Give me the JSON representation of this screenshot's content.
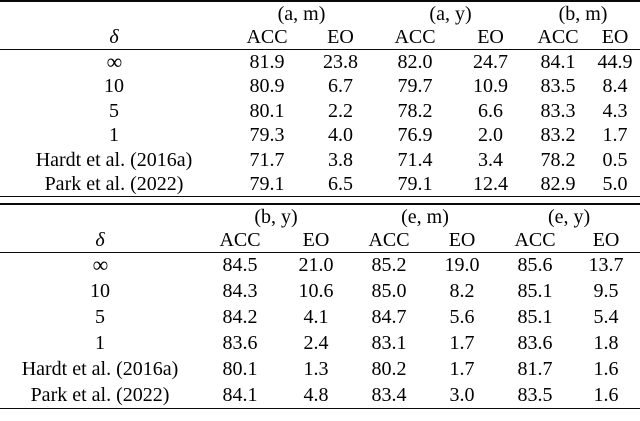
{
  "figure": {
    "kind": "paper-results-table",
    "background_color": "#ffffff",
    "text_color": "#000000"
  },
  "tables": [
    {
      "id": "top",
      "group_headers": [
        "(a, m)",
        "(a, y)",
        "(b, m)"
      ],
      "delta_header": "δ",
      "sub_headers": [
        "ACC",
        "EO",
        "ACC",
        "EO",
        "ACC",
        "EO"
      ],
      "rows": [
        {
          "label": "∞",
          "is_infinity": true,
          "values": [
            "81.9",
            "23.8",
            "82.0",
            "24.7",
            "84.1",
            "44.9"
          ],
          "bold": []
        },
        {
          "label": "10",
          "is_infinity": false,
          "values": [
            "80.9",
            "6.7",
            "79.7",
            "10.9",
            "83.5",
            "8.4"
          ],
          "bold": [
            2,
            3
          ]
        },
        {
          "label": "5",
          "is_infinity": false,
          "values": [
            "80.1",
            "2.2",
            "78.2",
            "6.6",
            "83.3",
            "4.3"
          ],
          "bold": [
            0,
            1,
            4,
            5
          ]
        },
        {
          "label": "1",
          "is_infinity": false,
          "values": [
            "79.3",
            "4.0",
            "76.9",
            "2.0",
            "83.2",
            "1.7"
          ],
          "bold": []
        },
        {
          "label": "Hardt et al. (2016a)",
          "is_infinity": false,
          "values": [
            "71.7",
            "3.8",
            "71.4",
            "3.4",
            "78.2",
            "0.5"
          ],
          "bold": []
        },
        {
          "label": "Park et al. (2022)",
          "is_infinity": false,
          "values": [
            "79.1",
            "6.5",
            "79.1",
            "12.4",
            "82.9",
            "5.0"
          ],
          "bold": []
        }
      ]
    },
    {
      "id": "bottom",
      "group_headers": [
        "(b, y)",
        "(e, m)",
        "(e, y)"
      ],
      "delta_header": "δ",
      "sub_headers": [
        "ACC",
        "EO",
        "ACC",
        "EO",
        "ACC",
        "EO"
      ],
      "rows": [
        {
          "label": "∞",
          "is_infinity": true,
          "values": [
            "84.5",
            "21.0",
            "85.2",
            "19.0",
            "85.6",
            "13.7"
          ],
          "bold": []
        },
        {
          "label": "10",
          "is_infinity": false,
          "values": [
            "84.3",
            "10.6",
            "85.0",
            "8.2",
            "85.1",
            "9.5"
          ],
          "bold": []
        },
        {
          "label": "5",
          "is_infinity": false,
          "values": [
            "84.2",
            "4.1",
            "84.7",
            "5.6",
            "85.1",
            "5.4"
          ],
          "bold": [
            0,
            1
          ]
        },
        {
          "label": "1",
          "is_infinity": false,
          "values": [
            "83.6",
            "2.4",
            "83.1",
            "1.7",
            "83.6",
            "1.8"
          ],
          "bold": []
        },
        {
          "label": "Hardt et al. (2016a)",
          "is_infinity": false,
          "values": [
            "80.1",
            "1.3",
            "80.2",
            "1.7",
            "81.7",
            "1.6"
          ],
          "bold": []
        },
        {
          "label": "Park et al. (2022)",
          "is_infinity": false,
          "values": [
            "84.1",
            "4.8",
            "83.4",
            "3.0",
            "83.5",
            "1.6"
          ],
          "bold": []
        }
      ]
    }
  ]
}
